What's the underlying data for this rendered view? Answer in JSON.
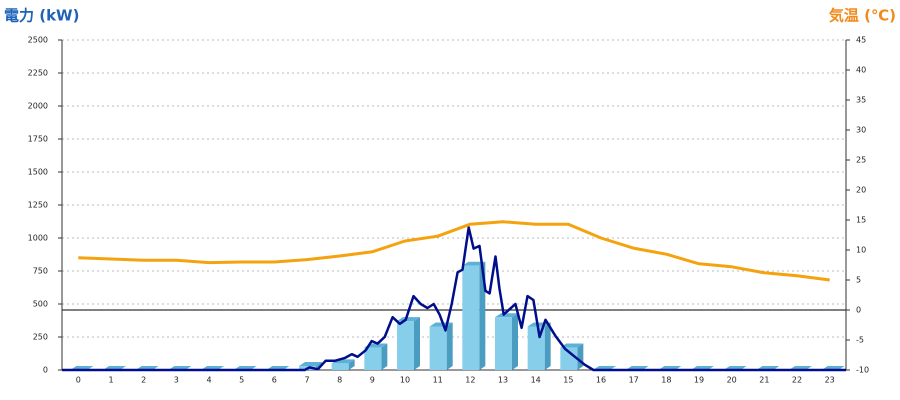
{
  "chart_data": {
    "type": "combo",
    "title": "電力 (kW)",
    "y2_title": "気温 (℃)",
    "categories": [
      "0",
      "1",
      "2",
      "3",
      "4",
      "5",
      "6",
      "7",
      "8",
      "9",
      "10",
      "11",
      "12",
      "13",
      "14",
      "15",
      "16",
      "17",
      "18",
      "19",
      "20",
      "21",
      "22",
      "23"
    ],
    "ylim": [
      0,
      2500
    ],
    "yticks": [
      0,
      250,
      500,
      750,
      1000,
      1250,
      1500,
      1750,
      2000,
      2250,
      2500
    ],
    "y2lim": [
      -10,
      45
    ],
    "y2ticks": [
      -10,
      -5,
      0,
      5,
      10,
      15,
      20,
      25,
      30,
      35,
      40,
      45
    ],
    "grid": true,
    "series": [
      {
        "type": "bar",
        "color": "#87ceeb",
        "values": [
          0,
          0,
          0,
          0,
          0,
          0,
          0,
          30,
          50,
          170,
          370,
          330,
          790,
          400,
          330,
          170,
          0,
          0,
          0,
          0,
          0,
          0,
          0,
          0
        ]
      },
      {
        "type": "line",
        "color": "#000e8c",
        "x": [
          -0.5,
          6.93,
          7.08,
          7.33,
          7.57,
          7.85,
          8.15,
          8.37,
          8.55,
          8.8,
          8.98,
          9.16,
          9.38,
          9.62,
          9.84,
          10.02,
          10.26,
          10.48,
          10.69,
          10.88,
          11.06,
          11.24,
          11.43,
          11.61,
          11.76,
          11.95,
          12.1,
          12.28,
          12.46,
          12.59,
          12.77,
          12.89,
          13.02,
          13.2,
          13.38,
          13.57,
          13.75,
          13.93,
          14.12,
          14.3,
          14.6,
          14.9,
          15.2,
          15.5,
          15.77,
          23.5
        ],
        "values": [
          0,
          0,
          20,
          5,
          70,
          70,
          90,
          120,
          100,
          150,
          220,
          200,
          250,
          400,
          350,
          380,
          560,
          500,
          470,
          500,
          420,
          300,
          500,
          740,
          760,
          1080,
          920,
          940,
          600,
          580,
          860,
          620,
          420,
          460,
          500,
          320,
          560,
          530,
          250,
          380,
          260,
          160,
          100,
          40,
          0,
          0
        ]
      },
      {
        "type": "line",
        "axis": "y2",
        "color": "#f5a20f",
        "values": [
          8.7,
          8.5,
          8.3,
          8.3,
          7.9,
          8.0,
          8.0,
          8.4,
          9.0,
          9.7,
          11.5,
          12.3,
          14.3,
          14.7,
          14.3,
          14.3,
          12.0,
          10.3,
          9.3,
          7.7,
          7.2,
          6.2,
          5.7,
          5.0
        ]
      }
    ]
  }
}
